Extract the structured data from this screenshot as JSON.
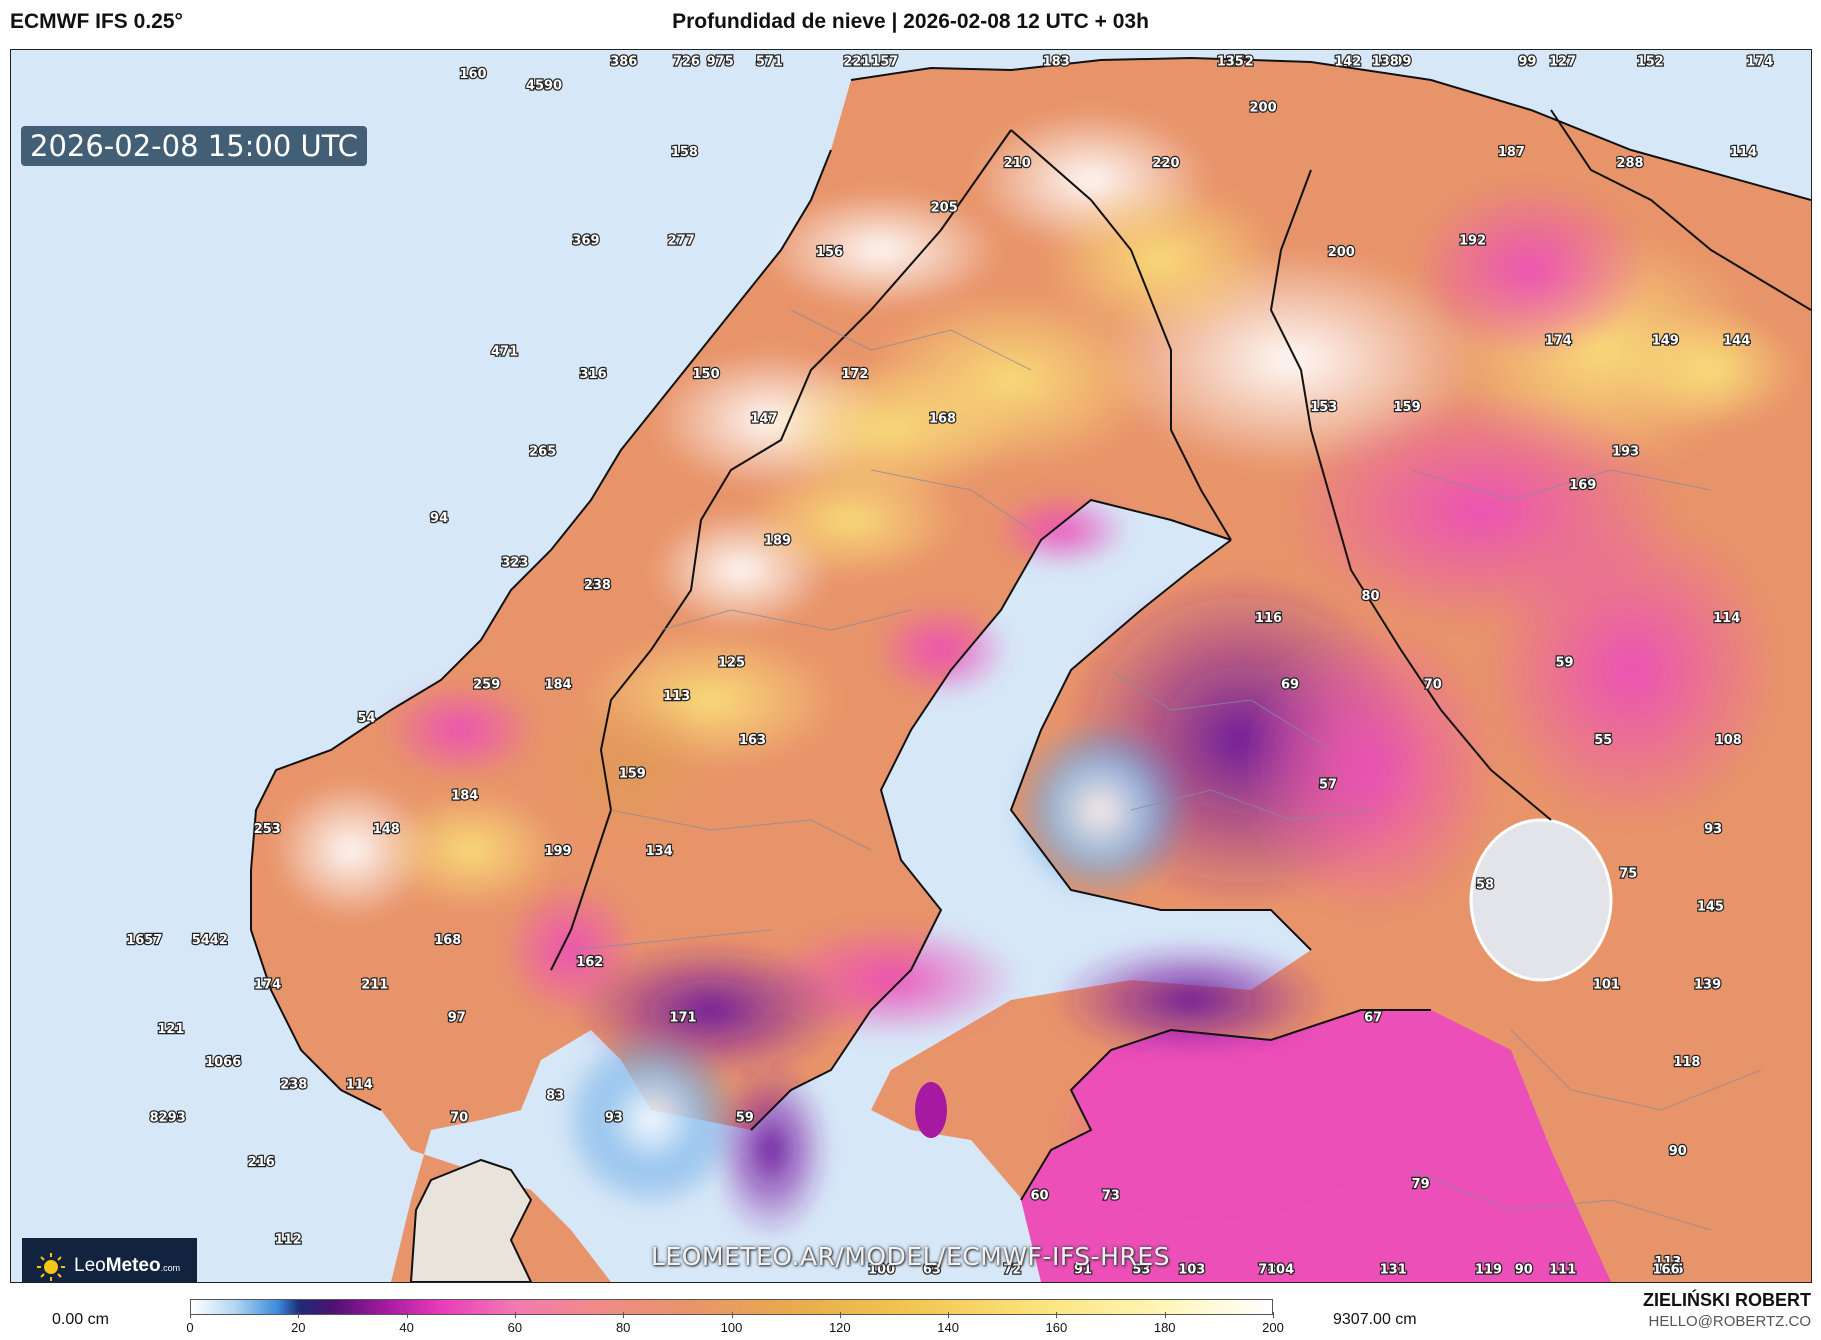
{
  "header": {
    "model": "ECMWF IFS 0.25°",
    "title": "Profundidad de nieve | 2026-02-08 12 UTC + 03h"
  },
  "valid_time": "2026-02-08 15:00 UTC",
  "logo": {
    "brand_a": "Leo",
    "brand_b": "Meteo",
    "suffix": ".com"
  },
  "watermark": "LEOMETEO.AR/MODEL/ECMWF-IFS-HRES",
  "legend": {
    "min_label": "0.00 cm",
    "max_label": "9307.00 cm",
    "ticks": [
      "0",
      "20",
      "40",
      "60",
      "80",
      "100",
      "120",
      "140",
      "160",
      "180",
      "200"
    ],
    "scale_min": 0,
    "scale_max": 200,
    "colors": [
      "#ffffff",
      "#3b8cdb",
      "#1f2c78",
      "#a51aa1",
      "#e83aba",
      "#f27ab2",
      "#e8946a",
      "#e8a94e",
      "#f2c44f",
      "#fbe27a",
      "#ffffff"
    ]
  },
  "author": {
    "name": "ZIELIŃSKI ROBERT",
    "email": "HELLO@ROBERTZ.CO"
  },
  "colors": {
    "sea": "#d6e7f7",
    "land_no_snow": "#e8e4dc",
    "border": "#111111"
  },
  "map_values": [
    {
      "v": "975",
      "lon": 16.9,
      "lat": 69.6
    },
    {
      "v": "221",
      "lon": 19.2,
      "lat": 69.6
    },
    {
      "v": "183",
      "lon": 22.5,
      "lat": 70.3
    },
    {
      "v": "172",
      "lon": 25.6,
      "lat": 70.2
    },
    {
      "v": "142",
      "lon": 27.4,
      "lat": 70.3
    },
    {
      "v": "726",
      "lon": 16.4,
      "lat": 68.6
    },
    {
      "v": "571",
      "lon": 17.8,
      "lat": 68.5
    },
    {
      "v": "135",
      "lon": 25.5,
      "lat": 69.2
    },
    {
      "v": "99",
      "lon": 28.4,
      "lat": 69.1
    },
    {
      "v": "99",
      "lon": 30.5,
      "lat": 69.1
    },
    {
      "v": "152",
      "lon": 32.6,
      "lat": 68.6
    },
    {
      "v": "386",
      "lon": 15.4,
      "lat": 67.8
    },
    {
      "v": "160",
      "lon": 12.9,
      "lat": 67.3
    },
    {
      "v": "4590",
      "lon": 14.1,
      "lat": 67.2
    },
    {
      "v": "157",
      "lon": 19.8,
      "lat": 67.6
    },
    {
      "v": "138",
      "lon": 28.2,
      "lat": 67.8
    },
    {
      "v": "127",
      "lon": 31.2,
      "lat": 67.5
    },
    {
      "v": "174",
      "lon": 34.5,
      "lat": 67.7
    },
    {
      "v": "200",
      "lon": 26.2,
      "lat": 67.0
    },
    {
      "v": "158",
      "lon": 16.5,
      "lat": 66.6
    },
    {
      "v": "210",
      "lon": 22.1,
      "lat": 66.5
    },
    {
      "v": "220",
      "lon": 24.6,
      "lat": 66.5
    },
    {
      "v": "187",
      "lon": 30.4,
      "lat": 66.6
    },
    {
      "v": "288",
      "lon": 32.4,
      "lat": 66.5
    },
    {
      "v": "114",
      "lon": 34.3,
      "lat": 66.6
    },
    {
      "v": "205",
      "lon": 20.9,
      "lat": 66.1
    },
    {
      "v": "369",
      "lon": 14.9,
      "lat": 65.8
    },
    {
      "v": "277",
      "lon": 16.5,
      "lat": 65.8
    },
    {
      "v": "156",
      "lon": 19.0,
      "lat": 65.7
    },
    {
      "v": "200",
      "lon": 27.6,
      "lat": 65.7
    },
    {
      "v": "192",
      "lon": 29.8,
      "lat": 65.8
    },
    {
      "v": "471",
      "lon": 13.6,
      "lat": 64.8
    },
    {
      "v": "316",
      "lon": 15.1,
      "lat": 64.6
    },
    {
      "v": "150",
      "lon": 17.0,
      "lat": 64.6
    },
    {
      "v": "172",
      "lon": 19.5,
      "lat": 64.6
    },
    {
      "v": "174",
      "lon": 31.3,
      "lat": 64.9
    },
    {
      "v": "149",
      "lon": 33.1,
      "lat": 64.9
    },
    {
      "v": "144",
      "lon": 34.3,
      "lat": 64.9
    },
    {
      "v": "147",
      "lon": 18.0,
      "lat": 64.2
    },
    {
      "v": "168",
      "lon": 21.0,
      "lat": 64.2
    },
    {
      "v": "153",
      "lon": 27.4,
      "lat": 64.3
    },
    {
      "v": "159",
      "lon": 28.8,
      "lat": 64.3
    },
    {
      "v": "265",
      "lon": 14.3,
      "lat": 63.9
    },
    {
      "v": "193",
      "lon": 32.5,
      "lat": 63.9
    },
    {
      "v": "169",
      "lon": 31.8,
      "lat": 63.6
    },
    {
      "v": "323",
      "lon": 13.9,
      "lat": 62.9
    },
    {
      "v": "189",
      "lon": 18.3,
      "lat": 63.1
    },
    {
      "v": "94",
      "lon": 12.6,
      "lat": 63.3
    },
    {
      "v": "238",
      "lon": 15.3,
      "lat": 62.7
    },
    {
      "v": "80",
      "lon": 28.3,
      "lat": 62.6
    },
    {
      "v": "116",
      "lon": 26.6,
      "lat": 62.4
    },
    {
      "v": "114",
      "lon": 34.3,
      "lat": 62.4
    },
    {
      "v": "125",
      "lon": 17.6,
      "lat": 62.0
    },
    {
      "v": "59",
      "lon": 31.6,
      "lat": 62.0
    },
    {
      "v": "259",
      "lon": 13.5,
      "lat": 61.8
    },
    {
      "v": "184",
      "lon": 14.7,
      "lat": 61.8
    },
    {
      "v": "69",
      "lon": 27.0,
      "lat": 61.8
    },
    {
      "v": "70",
      "lon": 29.4,
      "lat": 61.8
    },
    {
      "v": "113",
      "lon": 16.7,
      "lat": 61.7
    },
    {
      "v": "54",
      "lon": 11.5,
      "lat": 61.5
    },
    {
      "v": "163",
      "lon": 18.0,
      "lat": 61.3
    },
    {
      "v": "108",
      "lon": 34.4,
      "lat": 61.3
    },
    {
      "v": "55",
      "lon": 32.3,
      "lat": 61.3
    },
    {
      "v": "159",
      "lon": 16.0,
      "lat": 61.0
    },
    {
      "v": "184",
      "lon": 13.2,
      "lat": 60.8
    },
    {
      "v": "57",
      "lon": 27.7,
      "lat": 60.9
    },
    {
      "v": "253",
      "lon": 9.9,
      "lat": 60.5
    },
    {
      "v": "148",
      "lon": 11.9,
      "lat": 60.5
    },
    {
      "v": "93",
      "lon": 34.2,
      "lat": 60.5
    },
    {
      "v": "199",
      "lon": 14.8,
      "lat": 60.3
    },
    {
      "v": "134",
      "lon": 16.5,
      "lat": 60.3
    },
    {
      "v": "75",
      "lon": 32.8,
      "lat": 60.1
    },
    {
      "v": "58",
      "lon": 30.4,
      "lat": 60.0
    },
    {
      "v": "145",
      "lon": 34.2,
      "lat": 59.8
    },
    {
      "v": "1657",
      "lon": 7.9,
      "lat": 59.5
    },
    {
      "v": "5442",
      "lon": 9.0,
      "lat": 59.5
    },
    {
      "v": "168",
      "lon": 13.0,
      "lat": 59.5
    },
    {
      "v": "162",
      "lon": 15.4,
      "lat": 59.3
    },
    {
      "v": "101",
      "lon": 32.5,
      "lat": 59.1
    },
    {
      "v": "139",
      "lon": 34.2,
      "lat": 59.1
    },
    {
      "v": "174",
      "lon": 10.0,
      "lat": 59.1
    },
    {
      "v": "211",
      "lon": 11.8,
      "lat": 59.1
    },
    {
      "v": "97",
      "lon": 13.2,
      "lat": 58.8
    },
    {
      "v": "171",
      "lon": 17.0,
      "lat": 58.8
    },
    {
      "v": "67",
      "lon": 28.6,
      "lat": 58.8
    },
    {
      "v": "121",
      "lon": 8.4,
      "lat": 58.7
    },
    {
      "v": "1066",
      "lon": 9.3,
      "lat": 58.4
    },
    {
      "v": "118",
      "lon": 33.9,
      "lat": 58.4
    },
    {
      "v": "238",
      "lon": 10.5,
      "lat": 58.2
    },
    {
      "v": "114",
      "lon": 11.6,
      "lat": 58.2
    },
    {
      "v": "83",
      "lon": 14.9,
      "lat": 58.1
    },
    {
      "v": "8293",
      "lon": 8.4,
      "lat": 57.9
    },
    {
      "v": "70",
      "lon": 13.3,
      "lat": 57.9
    },
    {
      "v": "93",
      "lon": 15.9,
      "lat": 57.9
    },
    {
      "v": "59",
      "lon": 18.1,
      "lat": 57.9
    },
    {
      "v": "216",
      "lon": 10.0,
      "lat": 57.5
    },
    {
      "v": "90",
      "lon": 33.8,
      "lat": 57.6
    },
    {
      "v": "79",
      "lon": 29.5,
      "lat": 57.3
    },
    {
      "v": "60",
      "lon": 23.1,
      "lat": 57.2
    },
    {
      "v": "73",
      "lon": 24.3,
      "lat": 57.2
    },
    {
      "v": "112",
      "lon": 10.5,
      "lat": 56.8
    },
    {
      "v": "113",
      "lon": 33.7,
      "lat": 56.6
    },
    {
      "v": "90",
      "lon": 31.3,
      "lat": 56.3
    },
    {
      "v": "78",
      "lon": 27.0,
      "lat": 56.1
    },
    {
      "v": "53",
      "lon": 24.9,
      "lat": 55.9
    },
    {
      "v": "63",
      "lon": 21.4,
      "lat": 55.6
    },
    {
      "v": "111",
      "lon": 32.0,
      "lat": 55.6
    },
    {
      "v": "115",
      "lon": 33.8,
      "lat": 55.7
    },
    {
      "v": "103",
      "lon": 25.8,
      "lat": 55.1
    },
    {
      "v": "104",
      "lon": 27.3,
      "lat": 55.0
    },
    {
      "v": "100",
      "lon": 20.6,
      "lat": 54.9
    },
    {
      "v": "72",
      "lon": 22.8,
      "lat": 54.9
    },
    {
      "v": "131",
      "lon": 29.2,
      "lat": 54.9
    },
    {
      "v": "119",
      "lon": 30.8,
      "lat": 54.9
    },
    {
      "v": "91",
      "lon": 24.0,
      "lat": 54.7
    },
    {
      "v": "166",
      "lon": 33.8,
      "lat": 54.7
    }
  ]
}
